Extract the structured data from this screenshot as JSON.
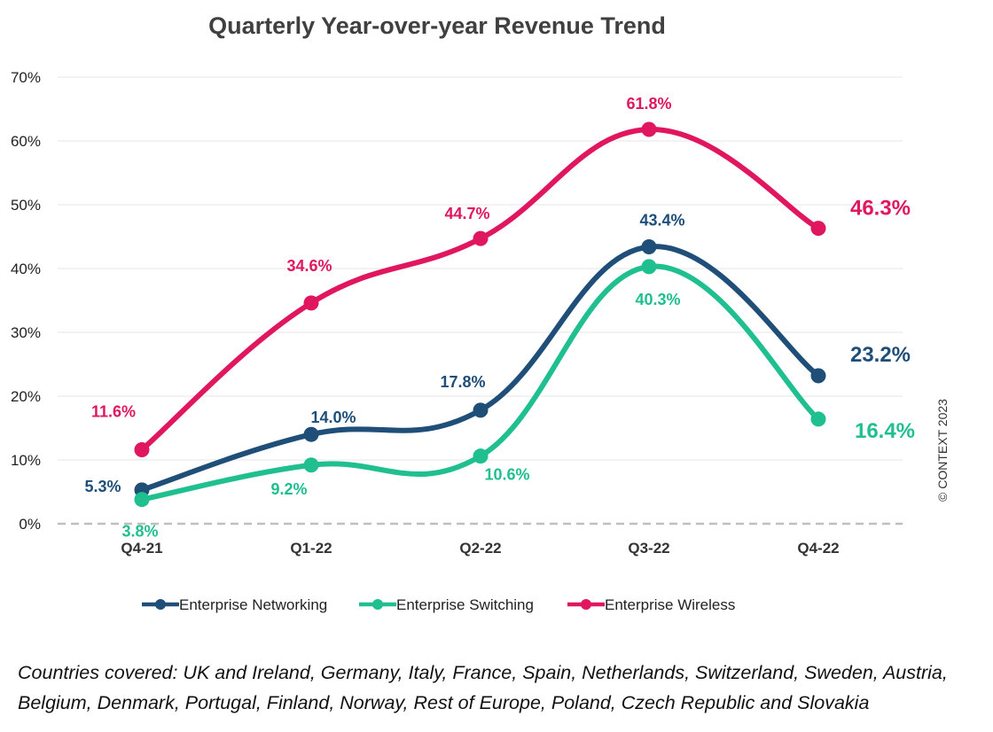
{
  "chart_data": {
    "type": "line",
    "title": "Quarterly Year-over-year Revenue Trend",
    "categories": [
      "Q4-21",
      "Q1-22",
      "Q2-22",
      "Q3-22",
      "Q4-22"
    ],
    "y_ticks": [
      "0%",
      "10%",
      "20%",
      "30%",
      "40%",
      "50%",
      "60%",
      "70%"
    ],
    "ylim": [
      0,
      70
    ],
    "grid": true,
    "legend_position": "bottom",
    "series": [
      {
        "name": "Enterprise Networking",
        "values": [
          5.3,
          14.0,
          17.8,
          43.4,
          23.2
        ],
        "labels": [
          "5.3%",
          "14.0%",
          "17.8%",
          "43.4%",
          "23.2%"
        ],
        "color": "#1f4e79"
      },
      {
        "name": "Enterprise Switching",
        "values": [
          3.8,
          9.2,
          10.6,
          40.3,
          16.4
        ],
        "labels": [
          "3.8%",
          "9.2%",
          "10.6%",
          "40.3%",
          "16.4%"
        ],
        "color": "#1fbf8f"
      },
      {
        "name": "Enterprise Wireless",
        "values": [
          11.6,
          34.6,
          44.7,
          61.8,
          46.3
        ],
        "labels": [
          "11.6%",
          "34.6%",
          "44.7%",
          "61.8%",
          "46.3%"
        ],
        "color": "#e0175f"
      }
    ]
  },
  "copyright": "© CONTEXT 2023",
  "footnote": "Countries covered: UK and Ireland, Germany, Italy, France, Spain, Netherlands, Switzerland, Sweden, Austria, Belgium, Denmark, Portugal, Finland, Norway, Rest of Europe, Poland, Czech Republic and Slovakia"
}
